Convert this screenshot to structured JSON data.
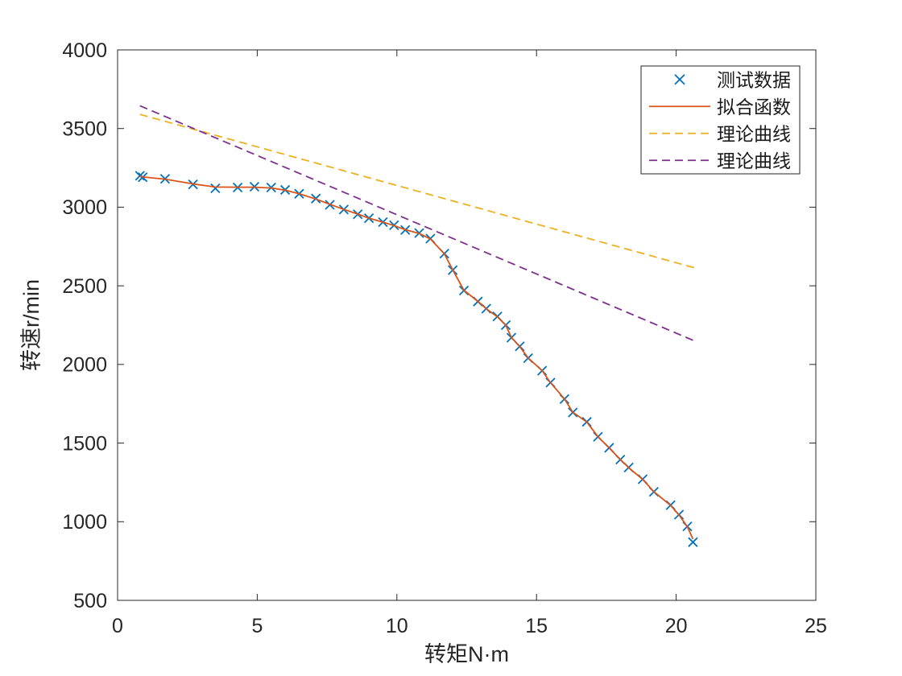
{
  "figure": {
    "background": "#ffffff",
    "axis_color": "#262626",
    "legend_border_color": "#262626",
    "legend_background": "#ffffff"
  },
  "chart_data": {
    "type": "line",
    "title": "",
    "xlabel": "转矩N·m",
    "ylabel": "转速r/min",
    "xlim": [
      0,
      25
    ],
    "ylim": [
      500,
      4000
    ],
    "x_ticks": [
      0,
      5,
      10,
      15,
      20,
      25
    ],
    "y_ticks": [
      500,
      1000,
      1500,
      2000,
      2500,
      3000,
      3500,
      4000
    ],
    "grid": false,
    "box": true,
    "legend_position": "top-right",
    "legend_entries": [
      "测试数据",
      "拟合函数",
      "理论曲线",
      "理论曲线"
    ],
    "series": [
      {
        "name": "测试数据",
        "kind": "scatter",
        "marker": "x",
        "color": "#0072BD",
        "x": [
          0.8,
          0.9,
          1.7,
          2.7,
          3.5,
          4.3,
          4.9,
          5.5,
          6.0,
          6.5,
          7.1,
          7.6,
          8.1,
          8.6,
          9.0,
          9.5,
          9.9,
          10.3,
          10.8,
          11.2,
          11.7,
          12.0,
          12.4,
          12.9,
          13.2,
          13.6,
          13.9,
          14.1,
          14.4,
          14.7,
          15.2,
          15.5,
          16.0,
          16.3,
          16.8,
          17.2,
          17.6,
          18.0,
          18.3,
          18.8,
          19.2,
          19.8,
          20.1,
          20.4,
          20.6
        ],
        "y": [
          3200,
          3190,
          3180,
          3145,
          3120,
          3125,
          3130,
          3125,
          3110,
          3085,
          3055,
          3015,
          2985,
          2955,
          2930,
          2905,
          2885,
          2855,
          2835,
          2800,
          2705,
          2600,
          2470,
          2400,
          2355,
          2305,
          2250,
          2170,
          2115,
          2040,
          1960,
          1885,
          1780,
          1695,
          1635,
          1540,
          1470,
          1395,
          1345,
          1270,
          1190,
          1105,
          1045,
          970,
          870
        ]
      },
      {
        "name": "拟合函数",
        "kind": "line",
        "style": "solid",
        "color": "#D95319",
        "x": [
          0.8,
          0.9,
          1.7,
          2.7,
          3.5,
          4.3,
          4.9,
          5.5,
          6.0,
          6.5,
          7.1,
          7.6,
          8.1,
          8.6,
          9.0,
          9.5,
          9.9,
          10.3,
          10.8,
          11.2,
          11.7,
          12.0,
          12.4,
          12.9,
          13.2,
          13.6,
          13.9,
          14.1,
          14.4,
          14.7,
          15.2,
          15.5,
          16.0,
          16.3,
          16.8,
          17.2,
          17.6,
          18.0,
          18.3,
          18.8,
          19.2,
          19.8,
          20.1,
          20.4,
          20.6
        ],
        "y": [
          3197,
          3192,
          3178,
          3148,
          3128,
          3127,
          3127,
          3122,
          3108,
          3085,
          3052,
          3018,
          2986,
          2956,
          2930,
          2905,
          2883,
          2857,
          2833,
          2798,
          2703,
          2601,
          2472,
          2401,
          2354,
          2303,
          2248,
          2172,
          2113,
          2041,
          1961,
          1884,
          1781,
          1696,
          1634,
          1541,
          1469,
          1396,
          1344,
          1269,
          1191,
          1104,
          1043,
          968,
          890
        ]
      },
      {
        "name": "理论曲线",
        "kind": "line",
        "style": "dashed",
        "color": "#EDB120",
        "x": [
          0.8,
          20.65
        ],
        "y": [
          3590,
          2615
        ]
      },
      {
        "name": "理论曲线",
        "kind": "line",
        "style": "dashed",
        "color": "#7E2F8E",
        "x": [
          0.8,
          20.65
        ],
        "y": [
          3645,
          2150
        ]
      }
    ]
  }
}
